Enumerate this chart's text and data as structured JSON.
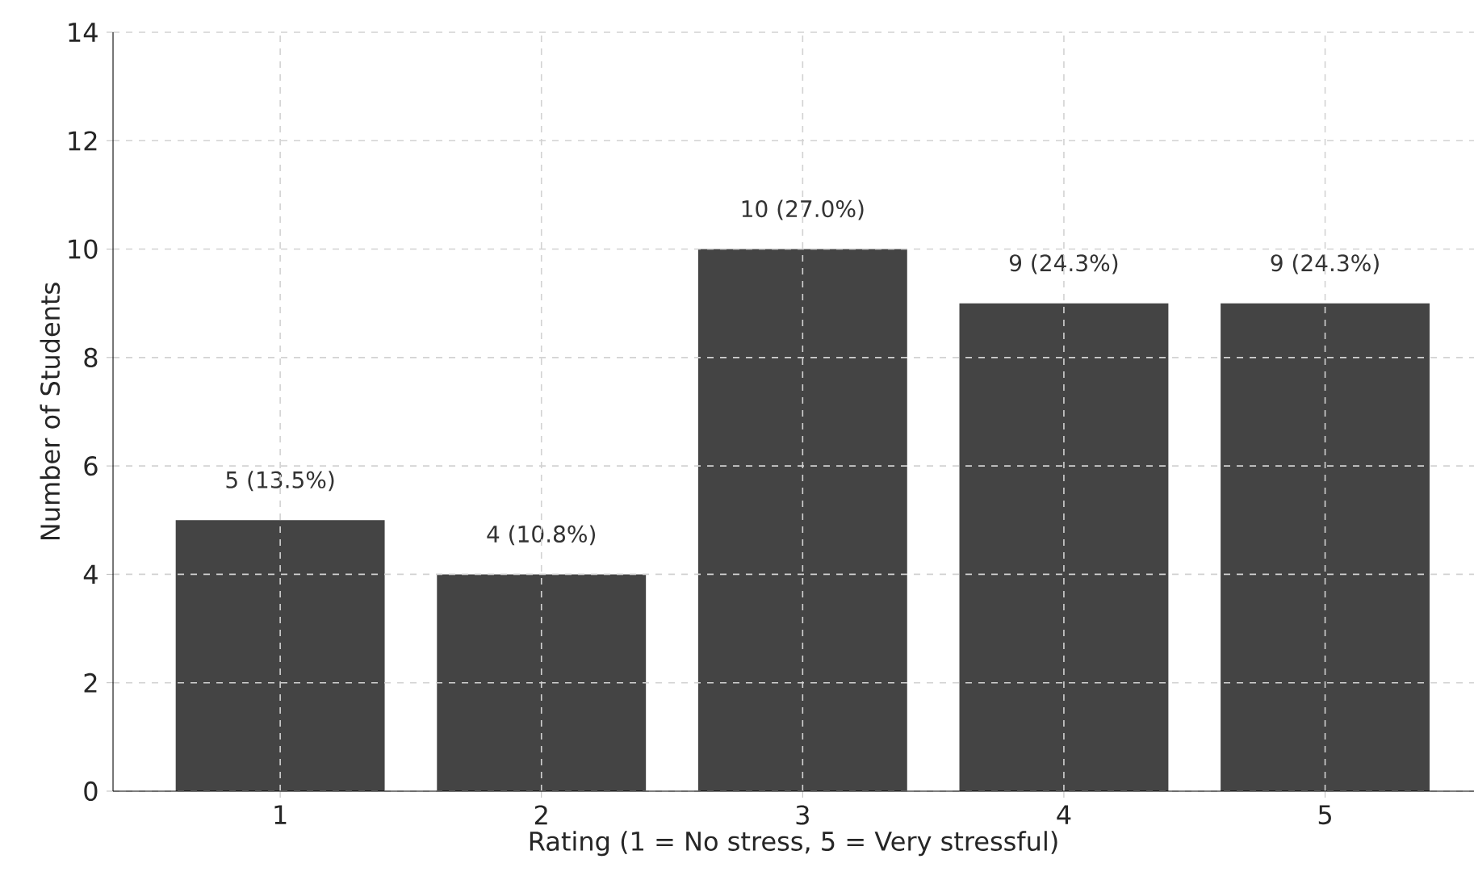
{
  "chart_data": {
    "type": "bar",
    "xlabel": "Rating (1 = No stress, 5 = Very stressful)",
    "ylabel": "Number of Students",
    "categories": [
      "1",
      "2",
      "3",
      "4",
      "5"
    ],
    "values": [
      5,
      4,
      10,
      9,
      9
    ],
    "value_labels": [
      "5 (13.5%)",
      "4 (10.8%)",
      "10 (27.0%)",
      "9 (24.3%)",
      "9 (24.3%)"
    ],
    "color": "#444444",
    "ylim": [
      0,
      14
    ],
    "yticks": [
      0,
      2,
      4,
      6,
      8,
      10,
      12,
      14
    ],
    "grid": true
  }
}
